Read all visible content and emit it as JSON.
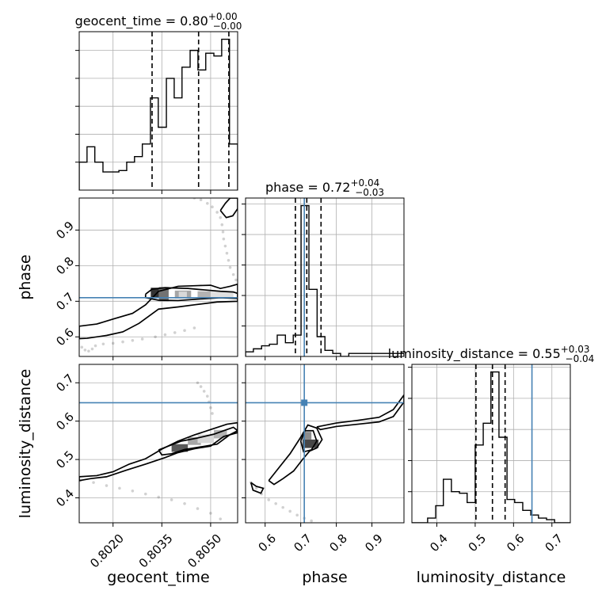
{
  "chart_data": {
    "type": "corner",
    "parameters": [
      "geocent_time",
      "phase",
      "luminosity_distance"
    ],
    "axis_labels": {
      "geocent_time": "geocent_time",
      "phase": "phase",
      "luminosity_distance": "luminosity_distance"
    },
    "titles": {
      "geocent_time": {
        "text": "geocent_time = 0.80",
        "sup": "+0.00",
        "sub": "−0.00"
      },
      "phase": {
        "text": "phase = 0.72",
        "sup": "+0.04",
        "sub": "−0.03"
      },
      "luminosity_distance": {
        "text": "luminosity_distance = 0.55",
        "sup": "+0.03",
        "sub": "−0.04"
      }
    },
    "ranges": {
      "geocent_time": [
        0.80096,
        0.80583
      ],
      "phase": [
        0.545,
        0.99
      ],
      "luminosity_distance": [
        0.335,
        0.748
      ]
    },
    "ticks": {
      "geocent_time": {
        "values": [
          0.802,
          0.8035,
          0.805
        ],
        "labels": [
          "0.8020",
          "0.8035",
          "0.8050"
        ]
      },
      "phase": {
        "values": [
          0.6,
          0.7,
          0.8,
          0.9
        ],
        "labels": [
          "0.6",
          "0.7",
          "0.8",
          "0.9"
        ]
      },
      "luminosity_distance": {
        "values": [
          0.4,
          0.5,
          0.6,
          0.7
        ],
        "labels": [
          "0.4",
          "0.5",
          "0.6",
          "0.7"
        ]
      }
    },
    "truths": {
      "geocent_time": null,
      "phase": 0.71,
      "luminosity_distance": 0.648
    },
    "quantiles": {
      "geocent_time": [
        0.8032,
        0.80463,
        0.80556
      ],
      "phase": [
        0.685,
        0.717,
        0.757
      ],
      "luminosity_distance": [
        0.502,
        0.545,
        0.578
      ]
    },
    "histograms": {
      "geocent_time": {
        "edges": [
          0.80096,
          0.8012,
          0.80144,
          0.80169,
          0.80193,
          0.80218,
          0.80242,
          0.80266,
          0.8029,
          0.80315,
          0.80339,
          0.80364,
          0.80388,
          0.80412,
          0.80437,
          0.80461,
          0.80485,
          0.8051,
          0.80534,
          0.80558,
          0.80583
        ],
        "values": [
          0.2,
          0.31,
          0.2,
          0.13,
          0.13,
          0.14,
          0.2,
          0.24,
          0.33,
          0.66,
          0.45,
          0.8,
          0.66,
          0.88,
          1.0,
          0.86,
          0.98,
          0.96,
          1.08,
          0.33
        ]
      },
      "phase": {
        "edges": [
          0.545,
          0.567,
          0.59,
          0.612,
          0.634,
          0.657,
          0.679,
          0.701,
          0.723,
          0.746,
          0.768,
          0.79,
          0.812,
          0.835,
          0.857,
          0.879,
          0.901,
          0.924,
          0.946,
          0.968,
          0.99
        ],
        "values": [
          0.03,
          0.05,
          0.07,
          0.08,
          0.14,
          0.09,
          0.14,
          0.99,
          0.44,
          0.13,
          0.04,
          0.02,
          0.0,
          0.02,
          0.02,
          0.02,
          0.02,
          0.02,
          0.02,
          0.02
        ]
      },
      "luminosity_distance": {
        "edges": [
          0.335,
          0.356,
          0.376,
          0.397,
          0.417,
          0.438,
          0.459,
          0.479,
          0.5,
          0.521,
          0.541,
          0.562,
          0.583,
          0.603,
          0.624,
          0.645,
          0.665,
          0.686,
          0.707,
          0.727,
          0.748
        ],
        "values": [
          0.0,
          0.0,
          0.03,
          0.11,
          0.28,
          0.2,
          0.19,
          0.13,
          0.5,
          0.64,
          0.97,
          0.55,
          0.15,
          0.13,
          0.08,
          0.05,
          0.03,
          0.02,
          0.0,
          0.0
        ]
      }
    },
    "samples": {
      "geocent_time__phase": [
        [
          0.80104,
          0.571
        ],
        [
          0.80114,
          0.563
        ],
        [
          0.80125,
          0.56
        ],
        [
          0.80136,
          0.566
        ],
        [
          0.80146,
          0.575
        ],
        [
          0.8017,
          0.58
        ],
        [
          0.802,
          0.582
        ],
        [
          0.8023,
          0.586
        ],
        [
          0.8026,
          0.59
        ],
        [
          0.8029,
          0.594
        ],
        [
          0.8033,
          0.6
        ],
        [
          0.8036,
          0.606
        ],
        [
          0.8039,
          0.612
        ],
        [
          0.8042,
          0.618
        ],
        [
          0.8045,
          0.625
        ],
        [
          0.8045,
          0.99
        ],
        [
          0.8047,
          0.985
        ],
        [
          0.8049,
          0.975
        ],
        [
          0.80505,
          0.965
        ],
        [
          0.8052,
          0.95
        ],
        [
          0.8053,
          0.935
        ],
        [
          0.80535,
          0.915
        ],
        [
          0.80538,
          0.895
        ],
        [
          0.8054,
          0.875
        ],
        [
          0.80545,
          0.855
        ],
        [
          0.8055,
          0.835
        ],
        [
          0.80555,
          0.815
        ],
        [
          0.8056,
          0.795
        ],
        [
          0.8057,
          0.775
        ],
        [
          0.80578,
          0.76
        ]
      ],
      "geocent_time__luminosity_distance": [
        [
          0.801,
          0.445
        ],
        [
          0.8014,
          0.44
        ],
        [
          0.8018,
          0.432
        ],
        [
          0.8022,
          0.425
        ],
        [
          0.8026,
          0.418
        ],
        [
          0.803,
          0.41
        ],
        [
          0.8034,
          0.402
        ],
        [
          0.8038,
          0.395
        ],
        [
          0.8042,
          0.385
        ],
        [
          0.8046,
          0.372
        ],
        [
          0.805,
          0.36
        ],
        [
          0.8053,
          0.345
        ],
        [
          0.8046,
          0.7
        ],
        [
          0.8047,
          0.69
        ],
        [
          0.8048,
          0.678
        ],
        [
          0.8049,
          0.665
        ],
        [
          0.80495,
          0.65
        ],
        [
          0.805,
          0.635
        ],
        [
          0.80505,
          0.62
        ]
      ],
      "phase__luminosity_distance": [
        [
          0.56,
          0.44
        ],
        [
          0.575,
          0.425
        ],
        [
          0.59,
          0.41
        ],
        [
          0.61,
          0.395
        ],
        [
          0.63,
          0.385
        ],
        [
          0.65,
          0.375
        ],
        [
          0.67,
          0.365
        ],
        [
          0.69,
          0.355
        ],
        [
          0.71,
          0.347
        ],
        [
          0.73,
          0.34
        ]
      ]
    },
    "contours": {
      "geocent_time__phase": [
        [
          [
            0.80096,
            0.63
          ],
          [
            0.8015,
            0.636
          ],
          [
            0.802,
            0.65
          ],
          [
            0.8026,
            0.666
          ],
          [
            0.803,
            0.69
          ],
          [
            0.8034,
            0.728
          ],
          [
            0.804,
            0.742
          ],
          [
            0.8046,
            0.744
          ],
          [
            0.805,
            0.745
          ],
          [
            0.8053,
            0.736
          ],
          [
            0.8056,
            0.742
          ],
          [
            0.80583,
            0.748
          ],
          [
            0.80583,
            0.7
          ],
          [
            0.8052,
            0.698
          ],
          [
            0.8045,
            0.69
          ],
          [
            0.804,
            0.684
          ],
          [
            0.8034,
            0.678
          ],
          [
            0.8028,
            0.638
          ],
          [
            0.8023,
            0.614
          ],
          [
            0.8018,
            0.604
          ],
          [
            0.8012,
            0.596
          ],
          [
            0.80096,
            0.595
          ],
          [
            0.80096,
            0.63
          ]
        ],
        [
          [
            0.803,
            0.72
          ],
          [
            0.8032,
            0.734
          ],
          [
            0.8036,
            0.738
          ],
          [
            0.8043,
            0.736
          ],
          [
            0.8048,
            0.732
          ],
          [
            0.8053,
            0.728
          ],
          [
            0.8057,
            0.726
          ],
          [
            0.80583,
            0.722
          ],
          [
            0.80583,
            0.708
          ],
          [
            0.8053,
            0.71
          ],
          [
            0.8046,
            0.706
          ],
          [
            0.804,
            0.702
          ],
          [
            0.8034,
            0.703
          ],
          [
            0.803,
            0.71
          ],
          [
            0.803,
            0.72
          ]
        ],
        [
          [
            0.8053,
            0.955
          ],
          [
            0.80545,
            0.975
          ],
          [
            0.8056,
            0.99
          ],
          [
            0.80583,
            0.99
          ],
          [
            0.80583,
            0.96
          ],
          [
            0.80568,
            0.94
          ],
          [
            0.80548,
            0.935
          ],
          [
            0.8053,
            0.955
          ]
        ]
      ],
      "geocent_time__luminosity_distance": [
        [
          [
            0.80096,
            0.455
          ],
          [
            0.8015,
            0.458
          ],
          [
            0.802,
            0.468
          ],
          [
            0.8025,
            0.488
          ],
          [
            0.803,
            0.502
          ],
          [
            0.8035,
            0.527
          ],
          [
            0.804,
            0.548
          ],
          [
            0.8045,
            0.564
          ],
          [
            0.805,
            0.578
          ],
          [
            0.8055,
            0.592
          ],
          [
            0.80583,
            0.596
          ],
          [
            0.80583,
            0.57
          ],
          [
            0.8054,
            0.56
          ],
          [
            0.805,
            0.535
          ],
          [
            0.8045,
            0.528
          ],
          [
            0.804,
            0.518
          ],
          [
            0.8036,
            0.505
          ],
          [
            0.803,
            0.488
          ],
          [
            0.8024,
            0.472
          ],
          [
            0.8018,
            0.455
          ],
          [
            0.8013,
            0.45
          ],
          [
            0.80096,
            0.445
          ],
          [
            0.80096,
            0.455
          ]
        ],
        [
          [
            0.8034,
            0.525
          ],
          [
            0.8037,
            0.535
          ],
          [
            0.8041,
            0.548
          ],
          [
            0.8046,
            0.556
          ],
          [
            0.8051,
            0.566
          ],
          [
            0.8055,
            0.578
          ],
          [
            0.8057,
            0.584
          ],
          [
            0.80583,
            0.575
          ],
          [
            0.8056,
            0.565
          ],
          [
            0.8052,
            0.54
          ],
          [
            0.8047,
            0.533
          ],
          [
            0.8042,
            0.526
          ],
          [
            0.8038,
            0.515
          ],
          [
            0.8035,
            0.512
          ],
          [
            0.8034,
            0.525
          ]
        ]
      ],
      "phase__luminosity_distance": [
        [
          [
            0.61,
            0.445
          ],
          [
            0.64,
            0.48
          ],
          [
            0.67,
            0.515
          ],
          [
            0.7,
            0.558
          ],
          [
            0.72,
            0.59
          ],
          [
            0.745,
            0.582
          ],
          [
            0.76,
            0.552
          ],
          [
            0.745,
            0.53
          ],
          [
            0.725,
            0.522
          ],
          [
            0.705,
            0.5
          ],
          [
            0.68,
            0.47
          ],
          [
            0.65,
            0.45
          ],
          [
            0.625,
            0.435
          ],
          [
            0.61,
            0.445
          ]
        ],
        [
          [
            0.7,
            0.548
          ],
          [
            0.712,
            0.575
          ],
          [
            0.735,
            0.575
          ],
          [
            0.745,
            0.548
          ],
          [
            0.73,
            0.525
          ],
          [
            0.708,
            0.52
          ],
          [
            0.7,
            0.548
          ]
        ],
        [
          [
            0.56,
            0.44
          ],
          [
            0.575,
            0.43
          ],
          [
            0.595,
            0.425
          ],
          [
            0.588,
            0.412
          ],
          [
            0.566,
            0.42
          ],
          [
            0.56,
            0.44
          ]
        ],
        [
          [
            0.745,
            0.585
          ],
          [
            0.8,
            0.595
          ],
          [
            0.86,
            0.602
          ],
          [
            0.92,
            0.61
          ],
          [
            0.96,
            0.63
          ],
          [
            0.99,
            0.668
          ],
          [
            0.99,
            0.65
          ],
          [
            0.96,
            0.612
          ],
          [
            0.92,
            0.598
          ],
          [
            0.86,
            0.592
          ],
          [
            0.8,
            0.586
          ],
          [
            0.755,
            0.578
          ],
          [
            0.745,
            0.585
          ]
        ]
      ]
    },
    "shaded_cells": {
      "geocent_time__phase": [
        {
          "x": 0.80316,
          "y": 0.71,
          "w": 0.00025,
          "h": 0.028,
          "shade": 0.8
        },
        {
          "x": 0.80341,
          "y": 0.7,
          "w": 0.0003,
          "h": 0.04,
          "shade": 0.55
        },
        {
          "x": 0.8039,
          "y": 0.708,
          "w": 0.0005,
          "h": 0.022,
          "shade": 0.35
        },
        {
          "x": 0.8046,
          "y": 0.71,
          "w": 0.0004,
          "h": 0.018,
          "shade": 0.3
        },
        {
          "x": 0.805,
          "y": 0.71,
          "w": 0.0007,
          "h": 0.018,
          "shade": 0.12
        },
        {
          "x": 0.80402,
          "y": 0.712,
          "w": 0.00025,
          "h": 0.015,
          "shade": 0.15
        }
      ],
      "geocent_time__luminosity_distance": [
        {
          "x": 0.8038,
          "y": 0.52,
          "w": 0.0005,
          "h": 0.02,
          "shade": 0.65
        },
        {
          "x": 0.8043,
          "y": 0.538,
          "w": 0.0004,
          "h": 0.02,
          "shade": 0.35
        },
        {
          "x": 0.8046,
          "y": 0.543,
          "w": 0.0005,
          "h": 0.022,
          "shade": 0.15
        },
        {
          "x": 0.8051,
          "y": 0.555,
          "w": 0.0004,
          "h": 0.022,
          "shade": 0.3
        }
      ],
      "phase__luminosity_distance": [
        {
          "x": 0.705,
          "y": 0.53,
          "w": 0.045,
          "h": 0.022,
          "shade": 0.72
        },
        {
          "x": 0.705,
          "y": 0.552,
          "w": 0.025,
          "h": 0.02,
          "shade": 0.45
        }
      ]
    }
  }
}
